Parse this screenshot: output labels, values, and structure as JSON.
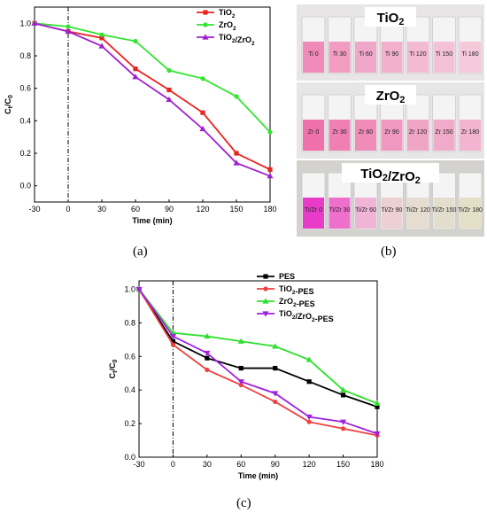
{
  "chart_data": [
    {
      "panel": "(a)",
      "type": "line",
      "x": [
        -30,
        0,
        30,
        60,
        90,
        120,
        150,
        180
      ],
      "xlabel": "Time (min)",
      "ylabel": "Ct/C0",
      "xlim": [
        -30,
        180
      ],
      "ylim": [
        -0.1,
        1.1
      ],
      "xticks": [
        "-30",
        "0",
        "30",
        "60",
        "90",
        "120",
        "150",
        "180"
      ],
      "yticks": [
        "0.0",
        "0.2",
        "0.4",
        "0.6",
        "0.8",
        "1.0"
      ],
      "legend_position": "top-right",
      "dashed_vline_x": 0,
      "series": [
        {
          "name": "TiO2",
          "color": "#e8221f",
          "marker": "square",
          "values": [
            1.0,
            0.95,
            0.91,
            0.72,
            0.59,
            0.45,
            0.2,
            0.1
          ]
        },
        {
          "name": "ZrO2",
          "color": "#32e632",
          "marker": "circle",
          "values": [
            1.0,
            0.98,
            0.93,
            0.89,
            0.71,
            0.66,
            0.55,
            0.33
          ]
        },
        {
          "name": "TiO2/ZrO2",
          "color": "#a020d0",
          "marker": "triangle-up",
          "values": [
            1.0,
            0.95,
            0.86,
            0.67,
            0.53,
            0.35,
            0.14,
            0.06
          ]
        }
      ]
    },
    {
      "panel": "(c)",
      "type": "line",
      "x": [
        -30,
        0,
        30,
        60,
        90,
        120,
        150,
        180
      ],
      "xlabel": "Time (min)",
      "ylabel": "Ct/C0",
      "xlim": [
        -30,
        180
      ],
      "ylim": [
        0.0,
        1.05
      ],
      "xticks": [
        "-30",
        "0",
        "30",
        "60",
        "90",
        "120",
        "150",
        "180"
      ],
      "yticks": [
        "0.0",
        "0.2",
        "0.4",
        "0.6",
        "0.8",
        "1.0"
      ],
      "legend_position": "top-right",
      "dashed_vline_x": 0,
      "series": [
        {
          "name": "PES",
          "color": "#000000",
          "marker": "square",
          "values": [
            1.0,
            0.69,
            0.59,
            0.53,
            0.53,
            0.45,
            0.37,
            0.3
          ]
        },
        {
          "name": "TiO2-PES",
          "color": "#f04040",
          "marker": "circle",
          "values": [
            1.0,
            0.67,
            0.52,
            0.43,
            0.33,
            0.21,
            0.17,
            0.13
          ]
        },
        {
          "name": "ZrO2-PES",
          "color": "#2ee02e",
          "marker": "triangle-up",
          "values": [
            1.0,
            0.74,
            0.72,
            0.69,
            0.66,
            0.58,
            0.4,
            0.32
          ]
        },
        {
          "name": "TiO2/ZrO2-PES",
          "color": "#a020e0",
          "marker": "triangle-down",
          "values": [
            1.0,
            0.72,
            0.62,
            0.45,
            0.38,
            0.24,
            0.21,
            0.14
          ]
        }
      ]
    }
  ],
  "panel_labels": {
    "a": "(a)",
    "b": "(b)",
    "c": "(c)"
  },
  "photo_panel": {
    "rows": [
      {
        "title": "TiO2",
        "vial_labels": [
          "Ti 0",
          "Ti 30",
          "Ti 60",
          "Ti 90",
          "Ti 120",
          "Ti 150",
          "Ti 180"
        ],
        "liquid_colors": [
          "#f08ab8",
          "#f29cc2",
          "#f0a8c8",
          "#f2b0cc",
          "#f3bad2",
          "#f4c2d6",
          "#f5c8da"
        ]
      },
      {
        "title": "ZrO2",
        "vial_labels": [
          "Zr 0",
          "Zr 30",
          "Zr 60",
          "Zr 90",
          "Zr 120",
          "Zr 150",
          "Zr 180"
        ],
        "liquid_colors": [
          "#f070ac",
          "#f080b4",
          "#f08cb8",
          "#f098c0",
          "#f0a4c6",
          "#f0aaca",
          "#f2b4d0"
        ]
      },
      {
        "title": "TiO2/ZrO2",
        "vial_labels": [
          "Ti/Zr 0",
          "Ti/Zr 30",
          "Ti/Zr 60",
          "Ti/Zr 90",
          "Ti/Zr 120",
          "Ti/Zr 150",
          "Ti/Zr 180"
        ],
        "liquid_colors": [
          "#e83cc8",
          "#ee70cc",
          "#efb4d6",
          "#ecd0d4",
          "#e6dcd0",
          "#e2ddcc",
          "#e4e0c8"
        ]
      }
    ]
  }
}
